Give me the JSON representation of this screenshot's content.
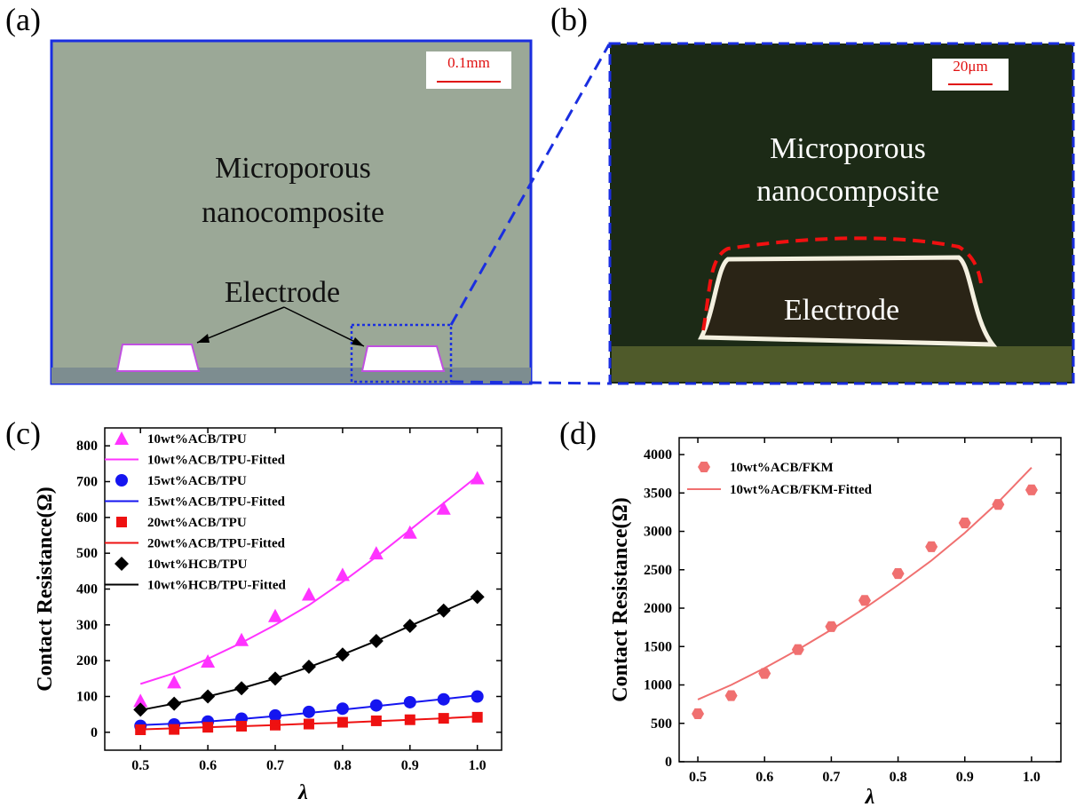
{
  "panels": {
    "a": {
      "label": "(a)",
      "scale_bar": "0.1mm",
      "region_text": [
        "Microporous",
        "nanocomposite"
      ],
      "electrode_text": "Electrode"
    },
    "b": {
      "label": "(b)",
      "scale_bar": "20μm",
      "region_text": [
        "Microporous",
        "nanocomposite"
      ],
      "electrode_text": "Electrode"
    }
  },
  "chart_data": [
    {
      "type": "scatter",
      "panel_label": "(c)",
      "y_label": "Contact Resistance(Ω)",
      "x_label": "λ",
      "x": [
        0.5,
        0.55,
        0.6,
        0.65,
        0.7,
        0.75,
        0.8,
        0.85,
        0.9,
        0.95,
        1.0
      ],
      "xlim": [
        0.447,
        1.036
      ],
      "xticks": [
        0.5,
        0.6,
        0.7,
        0.8,
        0.9,
        {
          "value": 1.0,
          "label": "1.0"
        }
      ],
      "ylim": [
        -50,
        850
      ],
      "yticks": [
        0,
        100,
        200,
        300,
        400,
        500,
        600,
        700,
        800
      ],
      "series": [
        {
          "name": "10wt%ACB/TPU",
          "color": "#ff33ff",
          "kind": "scatter",
          "marker": "triangle",
          "values": [
            88,
            140,
            198,
            258,
            325,
            385,
            440,
            500,
            558,
            625,
            710
          ]
        },
        {
          "name": "10wt%ACB/TPU-Fitted",
          "color": "#ff33ff",
          "kind": "line",
          "values": [
            135,
            165,
            205,
            250,
            300,
            355,
            420,
            490,
            565,
            640,
            715
          ]
        },
        {
          "name": "15wt%ACB/TPU",
          "color": "#1515f0",
          "kind": "scatter",
          "marker": "circle",
          "values": [
            18,
            22,
            30,
            38,
            47,
            57,
            66,
            75,
            84,
            92,
            100
          ]
        },
        {
          "name": "15wt%ACB/TPU-Fitted",
          "color": "#1515f0",
          "kind": "line",
          "values": [
            20,
            24,
            30,
            37,
            45,
            54,
            63,
            73,
            83,
            93,
            103
          ]
        },
        {
          "name": "20wt%ACB/TPU",
          "color": "#ee1111",
          "kind": "scatter",
          "marker": "square",
          "values": [
            7,
            8,
            14,
            17,
            20,
            23,
            28,
            32,
            35,
            39,
            42
          ]
        },
        {
          "name": "20wt%ACB/TPU-Fitted",
          "color": "#ee1111",
          "kind": "line",
          "values": [
            8,
            11,
            14,
            17,
            20,
            24,
            27,
            31,
            35,
            39,
            44
          ]
        },
        {
          "name": "10wt%HCB/TPU",
          "color": "#000000",
          "kind": "scatter",
          "marker": "diamond",
          "values": [
            63,
            80,
            100,
            123,
            150,
            183,
            217,
            255,
            297,
            340,
            378
          ]
        },
        {
          "name": "10wt%HCB/TPU-Fitted",
          "color": "#000000",
          "kind": "line",
          "values": [
            62,
            80,
            100,
            123,
            150,
            182,
            217,
            255,
            297,
            338,
            380
          ]
        }
      ]
    },
    {
      "type": "scatter",
      "panel_label": "(d)",
      "y_label": "Contact Resistance(Ω)",
      "x_label": "λ",
      "x": [
        0.5,
        0.55,
        0.6,
        0.65,
        0.7,
        0.75,
        0.8,
        0.85,
        0.9,
        0.95,
        1.0
      ],
      "xlim": [
        0.472,
        1.044
      ],
      "xticks": [
        0.5,
        0.6,
        0.7,
        0.8,
        0.9,
        {
          "value": 1.0,
          "label": "1.0"
        }
      ],
      "ylim": [
        0,
        4220
      ],
      "yticks": [
        0,
        500,
        1000,
        1500,
        2000,
        2500,
        3000,
        3500,
        4000
      ],
      "series": [
        {
          "name": "10wt%ACB/FKM",
          "color": "#f07070",
          "kind": "scatter",
          "marker": "hexagon",
          "values": [
            625,
            860,
            1150,
            1460,
            1760,
            2100,
            2450,
            2800,
            3110,
            3350,
            3540
          ]
        },
        {
          "name": "10wt%ACB/FKM-Fitted",
          "color": "#f07070",
          "kind": "line",
          "values": [
            810,
            1000,
            1220,
            1460,
            1720,
            2000,
            2300,
            2620,
            2980,
            3380,
            3830
          ]
        }
      ]
    }
  ]
}
